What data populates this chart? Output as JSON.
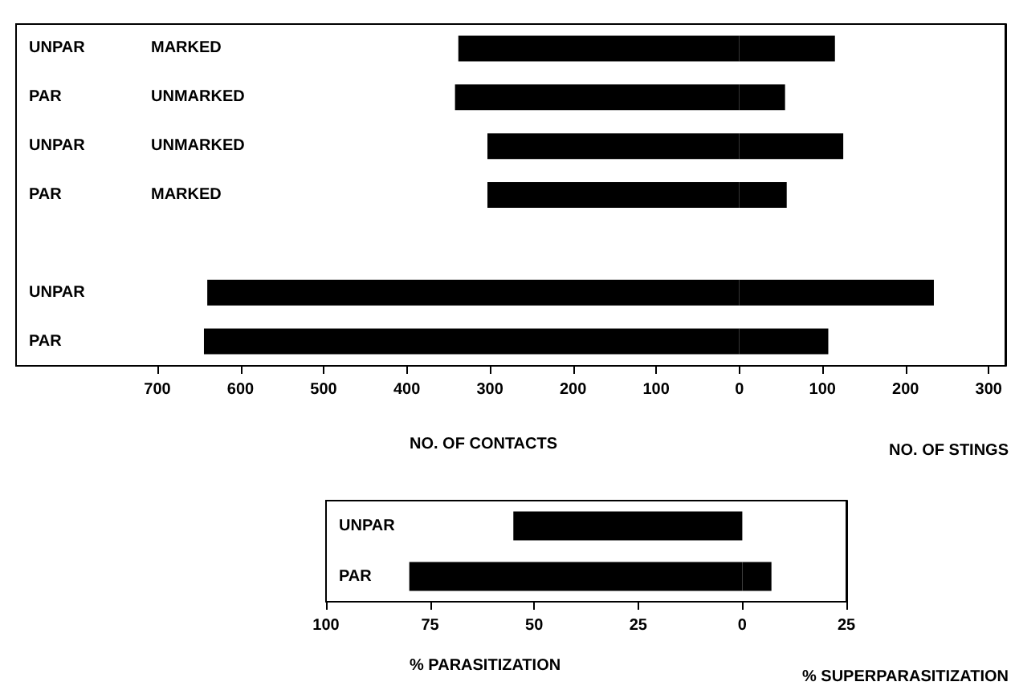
{
  "chart_data": [
    {
      "type": "bar",
      "orientation": "horizontal",
      "stacked": true,
      "categories": [
        "UNPAR MARKED",
        "PAR UNMARKED",
        "UNPAR UNMARKED",
        "PAR MARKED",
        null,
        "UNPAR",
        "PAR"
      ],
      "series": [
        {
          "color": "#000000",
          "values": [
            -338,
            -342,
            -303,
            -303,
            null,
            -640,
            -644
          ]
        },
        {
          "color": "#000000",
          "values": [
            115,
            55,
            125,
            57,
            null,
            234,
            107
          ]
        }
      ],
      "xlabel": "NO. OF CONTACTS",
      "annotations": [
        "NO. OF STINGS"
      ],
      "xlim": [
        -870,
        320
      ],
      "xticks": [
        {
          "value": -700,
          "label": "700"
        },
        {
          "value": -600,
          "label": "600"
        },
        {
          "value": -500,
          "label": "500"
        },
        {
          "value": -400,
          "label": "400"
        },
        {
          "value": -300,
          "label": "300"
        },
        {
          "value": -200,
          "label": "200"
        },
        {
          "value": -100,
          "label": "100"
        },
        0,
        100,
        200,
        300
      ],
      "grid": false
    },
    {
      "type": "bar",
      "orientation": "horizontal",
      "stacked": true,
      "categories": [
        "UNPAR",
        "PAR"
      ],
      "series": [
        {
          "color": "#000000",
          "values": [
            -55,
            -80
          ]
        },
        {
          "color": "#000000",
          "values": [
            0,
            7
          ]
        }
      ],
      "xlabel": "% PARASITIZATION",
      "annotations": [
        "% SUPERPARASITIZATION"
      ],
      "xlim": [
        -100,
        25
      ],
      "xticks": [
        {
          "value": -100,
          "label": "100"
        },
        {
          "value": -75,
          "label": "75"
        },
        {
          "value": -50,
          "label": "50"
        },
        {
          "value": -25,
          "label": "25"
        },
        0,
        25
      ],
      "grid": false
    }
  ]
}
